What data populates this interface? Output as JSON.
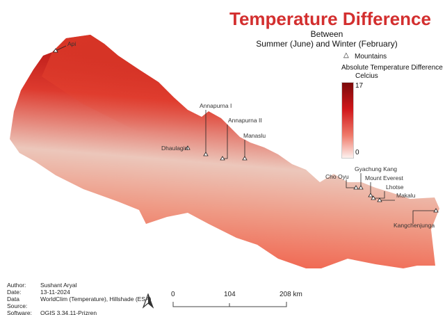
{
  "title": "Temperature Difference",
  "subtitle_line1": "Between",
  "subtitle_line2": "Summer (June) and Winter (February)",
  "legend": {
    "mountains_symbol": "triangle-icon",
    "mountains_label": "Mountains",
    "ramp_title": "Absolute Temperature Difference",
    "ramp_unit": "Celcius",
    "max": "17",
    "min": "0",
    "colors": {
      "high": "#7a0a0a",
      "mid": "#d0161a",
      "low": "#fdf1ee"
    }
  },
  "mountains": [
    {
      "name": "Api"
    },
    {
      "name": "Dhaulagiri"
    },
    {
      "name": "Annapurna I"
    },
    {
      "name": "Annapurna II"
    },
    {
      "name": "Manaslu"
    },
    {
      "name": "Cho Oyu"
    },
    {
      "name": "Gyachung Kang"
    },
    {
      "name": "Mount Everest"
    },
    {
      "name": "Lhotse"
    },
    {
      "name": "Makalu"
    },
    {
      "name": "Kangchenjunga"
    }
  ],
  "metadata": {
    "author_label": "Author:",
    "author": "Sushant Aryal",
    "date_label": "Date:",
    "date": "13-11-2024",
    "source_label": "Data Source:",
    "source": "WorldClim (Temperature), Hillshade (ESA)",
    "software_label": "Software:",
    "software": "QGIS 3.34.11-Prizren"
  },
  "north_arrow": "north-arrow-icon",
  "scalebar": {
    "t0": "0",
    "t1": "104",
    "t2": "208 km"
  }
}
